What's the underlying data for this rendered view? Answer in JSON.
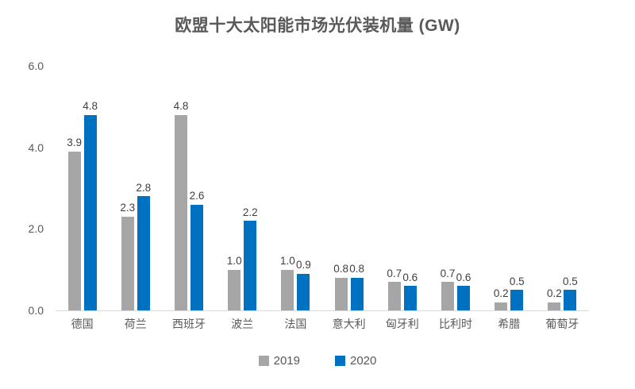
{
  "title": "欧盟十大太阳能市场光伏装机量 (GW)",
  "colors": {
    "series_2019": "#A6A6A6",
    "series_2020": "#0070C0",
    "axis_line": "#D9D9D9",
    "axis_text": "#595959",
    "value_label_text": "#404040",
    "title_text": "#595959",
    "background": "#FFFFFF"
  },
  "chart_data": {
    "type": "bar",
    "title": "欧盟十大太阳能市场光伏装机量 (GW)",
    "categories": [
      "德国",
      "荷兰",
      "西班牙",
      "波兰",
      "法国",
      "意大利",
      "匈牙利",
      "比利时",
      "希腊",
      "葡萄牙"
    ],
    "series": [
      {
        "name": "2019",
        "color": "#A6A6A6",
        "values": [
          3.9,
          2.3,
          4.8,
          1.0,
          1.0,
          0.8,
          0.7,
          0.7,
          0.2,
          0.2
        ]
      },
      {
        "name": "2020",
        "color": "#0070C0",
        "values": [
          4.8,
          2.8,
          2.6,
          2.2,
          0.9,
          0.8,
          0.6,
          0.6,
          0.5,
          0.5
        ]
      }
    ],
    "xlabel": "",
    "ylabel": "",
    "ylim": [
      0,
      6
    ],
    "yticks": [
      0,
      2,
      4,
      6
    ],
    "ytick_labels": [
      "0.0",
      "2.0",
      "4.0",
      "6.0"
    ],
    "grid": false,
    "value_labels": true,
    "value_label_format": "one_decimal",
    "legend_position": "bottom"
  }
}
